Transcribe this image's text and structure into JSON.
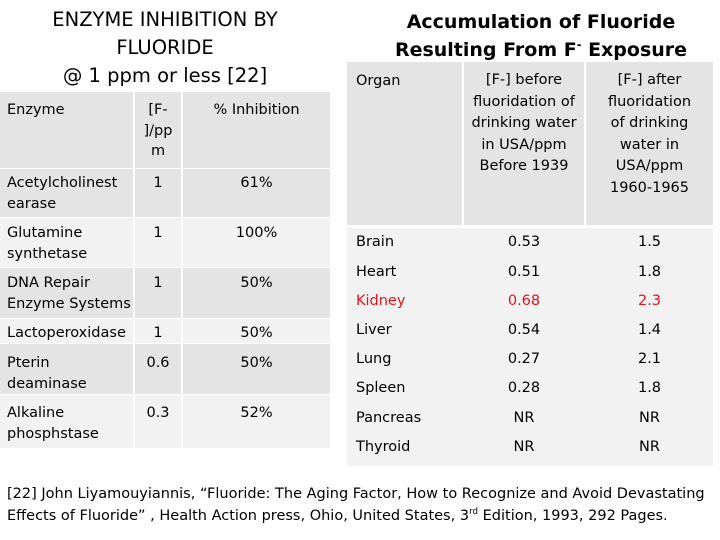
{
  "left": {
    "title_lines": [
      "ENZYME INHIBITION BY",
      "FLUORIDE",
      "@ 1 ppm or less [22]"
    ],
    "header": {
      "enzyme": "Enzyme",
      "conc_lines": [
        "[F-",
        "]/pp",
        "m"
      ],
      "inhibition": "% Inhibition"
    },
    "rows": [
      {
        "enzyme_lines": [
          "Acetylcholinest",
          "earase"
        ],
        "conc": "1",
        "inhibition": "61%"
      },
      {
        "enzyme_lines": [
          "Glutamine",
          "synthetase"
        ],
        "conc": "1",
        "inhibition": "100%"
      },
      {
        "enzyme_lines": [
          "DNA Repair",
          "Enzyme Systems"
        ],
        "conc": "1",
        "inhibition": "50%"
      },
      {
        "enzyme_lines": [
          "Lactoperoxidase"
        ],
        "conc": "1",
        "inhibition": "50%"
      },
      {
        "enzyme_lines": [
          "Pterin",
          "deaminase"
        ],
        "conc": "0.6",
        "inhibition": "50%"
      },
      {
        "enzyme_lines": [
          "Alkaline",
          "phosphstase"
        ],
        "conc": "0.3",
        "inhibition": "52%"
      }
    ]
  },
  "right": {
    "title_line1": "Accumulation of Fluoride",
    "title_line2_a": "Resulting From F",
    "title_line2_sup": "-",
    "title_line2_b": " Exposure",
    "header": {
      "organ": "Organ",
      "before_lines": [
        "[F-] before",
        "fluoridation of",
        "drinking water",
        "in USA/ppm",
        "Before 1939"
      ],
      "after_lines": [
        "[F-] after",
        "fluoridation",
        "of drinking",
        "water in",
        "USA/ppm",
        "1960-1965"
      ]
    },
    "rows": [
      {
        "organ": "Brain",
        "before": "0.53",
        "after": "1.5",
        "highlight": false
      },
      {
        "organ": "Heart",
        "before": "0.51",
        "after": "1.8",
        "highlight": false
      },
      {
        "organ": "Kidney",
        "before": "0.68",
        "after": "2.3",
        "highlight": true
      },
      {
        "organ": "Liver",
        "before": "0.54",
        "after": "1.4",
        "highlight": false
      },
      {
        "organ": "Lung",
        "before": "0.27",
        "after": "2.1",
        "highlight": false
      },
      {
        "organ": "Spleen",
        "before": "0.28",
        "after": "1.8",
        "highlight": false
      },
      {
        "organ": "Pancreas",
        "before": "NR",
        "after": "NR",
        "highlight": false
      },
      {
        "organ": "Thyroid",
        "before": "NR",
        "after": "NR",
        "highlight": false
      }
    ]
  },
  "footnote": {
    "line1": "[22]  John Liyamouyiannis, “Fluoride: The Aging Factor, How to Recognize and Avoid Devastating",
    "line2_a": "Effects of Fluoride” , Health Action press, Ohio, United States, 3",
    "line2_sup": "rd",
    "line2_b": " Edition, 1993, 292 Pages."
  },
  "colors": {
    "band_dark": "#e4e4e4",
    "band_light": "#f2f2f2",
    "divider": "#ffffff",
    "highlight": "#e0141e"
  }
}
